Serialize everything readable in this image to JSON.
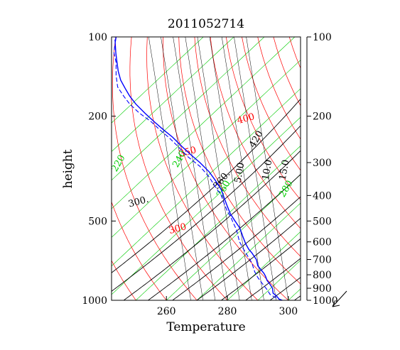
{
  "chart_data": {
    "type": "line",
    "title": "2011052714",
    "xlabel": "Temperature",
    "ylabel": "height",
    "xlim": [
      242,
      304
    ],
    "ylim": [
      1000,
      100
    ],
    "y_scale": "log-pressure",
    "x_ticks": [
      "260",
      "280",
      "300"
    ],
    "x_tick_values": [
      260,
      280,
      300
    ],
    "y_ticks_left": [
      "100",
      "200",
      "500",
      "1000"
    ],
    "y_tick_values_left": [
      100,
      200,
      500,
      1000
    ],
    "y_ticks_right": [
      "100",
      "200",
      "300",
      "400",
      "500",
      "600",
      "700",
      "800",
      "900",
      "1000"
    ],
    "y_tick_values_right": [
      100,
      200,
      300,
      400,
      500,
      600,
      700,
      800,
      900,
      1000
    ],
    "colors": {
      "temperature_profile": "#0000ff",
      "dewpoint_profile": "#0000ff",
      "dry_adiabats": "#ff0000",
      "moist_adiabats": "#000000",
      "isotherms": "#00cc00",
      "mixing_ratio": "#000000"
    },
    "isopleth_labels": [
      {
        "text": "220",
        "color": "#00cc00"
      },
      {
        "text": "300",
        "color": "#ff0000"
      },
      {
        "text": "300.",
        "color": "#000000"
      },
      {
        "text": "350",
        "color": "#ff0000"
      },
      {
        "text": "360.",
        "color": "#000000"
      },
      {
        "text": "400",
        "color": "#ff0000"
      },
      {
        "text": "420",
        "color": "#000000"
      },
      {
        "text": "5.00",
        "color": "#000000"
      },
      {
        "text": "10.0",
        "color": "#000000"
      },
      {
        "text": "15.0",
        "color": "#000000"
      },
      {
        "text": "240",
        "color": "#00cc00"
      },
      {
        "text": "260",
        "color": "#00cc00"
      },
      {
        "text": "280",
        "color": "#00cc00"
      }
    ],
    "series": [
      {
        "style": "solid",
        "points": [
          [
            298,
            1000
          ],
          [
            297,
            990
          ],
          [
            296,
            960
          ],
          [
            295,
            940
          ],
          [
            294.8,
            900
          ],
          [
            294,
            870
          ],
          [
            293,
            840
          ],
          [
            292.5,
            810
          ],
          [
            292,
            790
          ],
          [
            290,
            740
          ],
          [
            289.5,
            700
          ],
          [
            288,
            660
          ],
          [
            287,
            640
          ],
          [
            286,
            610
          ],
          [
            285,
            570
          ],
          [
            284.8,
            560
          ],
          [
            284,
            530
          ],
          [
            282.5,
            500
          ],
          [
            281,
            470
          ],
          [
            280,
            440
          ],
          [
            279,
            410
          ],
          [
            278,
            380
          ],
          [
            276,
            350
          ],
          [
            274,
            325
          ],
          [
            271,
            300
          ],
          [
            268,
            280
          ],
          [
            265,
            260
          ],
          [
            262,
            240
          ],
          [
            259,
            225
          ],
          [
            256,
            210
          ],
          [
            253,
            195
          ],
          [
            250,
            180
          ],
          [
            248,
            168
          ],
          [
            246.5,
            157
          ],
          [
            245,
            146
          ],
          [
            244.2,
            135
          ],
          [
            243.8,
            125
          ],
          [
            243.4,
            115
          ],
          [
            243.2,
            105
          ],
          [
            243.5,
            100
          ]
        ]
      },
      {
        "style": "dashed",
        "points": [
          [
            298,
            1000
          ],
          [
            296,
            980
          ],
          [
            294,
            950
          ],
          [
            293,
            910
          ],
          [
            292,
            880
          ],
          [
            291,
            850
          ],
          [
            290,
            820
          ],
          [
            289,
            780
          ],
          [
            288.5,
            750
          ],
          [
            288,
            720
          ],
          [
            287,
            690
          ],
          [
            286,
            660
          ],
          [
            285,
            630
          ],
          [
            284,
            600
          ],
          [
            283.5,
            570
          ],
          [
            283,
            540
          ],
          [
            282,
            510
          ],
          [
            281,
            480
          ],
          [
            280,
            460
          ],
          [
            279,
            430
          ],
          [
            278,
            400
          ],
          [
            276,
            370
          ],
          [
            274,
            340
          ],
          [
            271,
            310
          ],
          [
            267,
            285
          ],
          [
            264,
            262
          ],
          [
            261,
            242
          ],
          [
            258,
            226
          ],
          [
            255,
            210
          ],
          [
            251,
            194
          ],
          [
            248,
            180
          ],
          [
            246,
            168
          ],
          [
            244,
            155
          ],
          [
            243.5,
            140
          ],
          [
            243.5,
            125
          ],
          [
            242.8,
            115
          ],
          [
            243.2,
            105
          ],
          [
            243,
            100
          ]
        ]
      }
    ]
  }
}
